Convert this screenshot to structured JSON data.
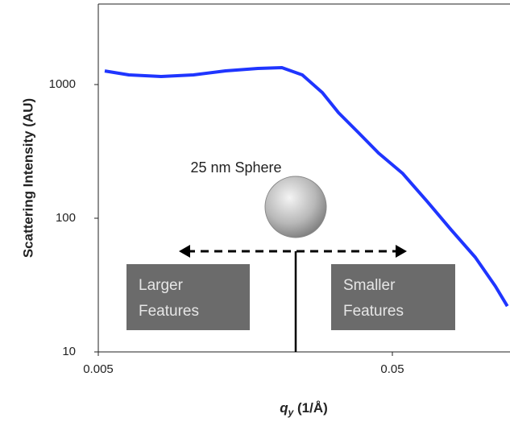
{
  "chart_data": {
    "type": "line",
    "log_x": true,
    "log_y": true,
    "x_label": [
      "q",
      "y",
      " (1/Å)"
    ],
    "y_label": "Scattering Intensity (AU)",
    "annotations": {
      "sphere": "25 nm Sphere",
      "left": [
        "Larger",
        "Features"
      ],
      "right": [
        "Smaller",
        "Features"
      ]
    },
    "xlim": [
      0.005,
      0.125
    ],
    "ylim": [
      10,
      4000
    ],
    "xticks": [
      0.005,
      0.05
    ],
    "yticks": [
      10,
      100,
      1000
    ],
    "series": [
      {
        "color": "#1f35ff",
        "x": [
          0.00526,
          0.00635,
          0.00818,
          0.01053,
          0.01355,
          0.01744,
          0.02105,
          0.0247,
          0.0289,
          0.0328,
          0.0384,
          0.0449,
          0.0541,
          0.0656,
          0.0792,
          0.0957,
          0.112,
          0.123
        ],
        "values": [
          1265,
          1181,
          1149,
          1181,
          1266,
          1320,
          1338,
          1181,
          871,
          615,
          435,
          307,
          217,
          134,
          82,
          51,
          31,
          22
        ]
      }
    ]
  }
}
